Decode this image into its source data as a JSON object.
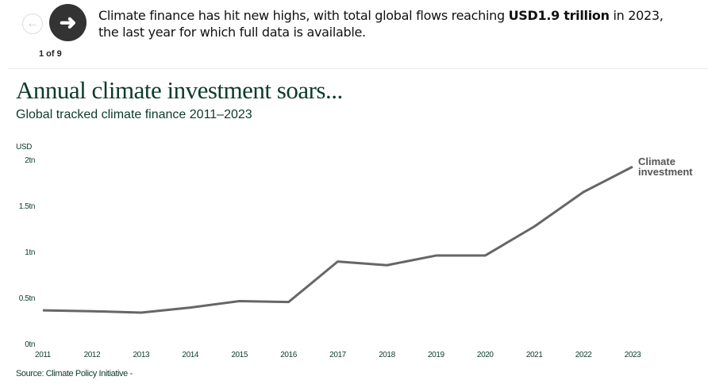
{
  "nav": {
    "prev_icon": "arrow-left-icon",
    "next_icon": "arrow-right-icon",
    "counter": "1 of 9"
  },
  "intro": {
    "before": "Climate finance has hit new highs, with total global flows reaching ",
    "bold": "USD1.9 trillion",
    "after": " in 2023, the last year for which full data is available."
  },
  "source": "Source: Climate Policy Initiative -",
  "colors": {
    "line": "#666666",
    "text": "#0d3b2b"
  },
  "chart_data": {
    "type": "line",
    "title": "Annual climate investment soars...",
    "subtitle": "Global tracked climate finance 2011–2023",
    "ylabel": "USD",
    "x": [
      "2011",
      "2012",
      "2013",
      "2014",
      "2015",
      "2016",
      "2017",
      "2018",
      "2019",
      "2020",
      "2021",
      "2022",
      "2023"
    ],
    "series": [
      {
        "name": "Climate investment",
        "values": [
          0.37,
          0.36,
          0.345,
          0.4,
          0.47,
          0.46,
          0.9,
          0.86,
          0.965,
          0.965,
          1.28,
          1.655,
          1.93
        ]
      }
    ],
    "ylim": [
      0,
      2
    ],
    "yticks": [
      {
        "v": 0,
        "label": "0tn"
      },
      {
        "v": 0.5,
        "label": "0.5tn"
      },
      {
        "v": 1,
        "label": "1tn"
      },
      {
        "v": 1.5,
        "label": "1.5tn"
      },
      {
        "v": 2,
        "label": "2tn"
      }
    ],
    "grid": false,
    "legend": "end-of-line label"
  }
}
